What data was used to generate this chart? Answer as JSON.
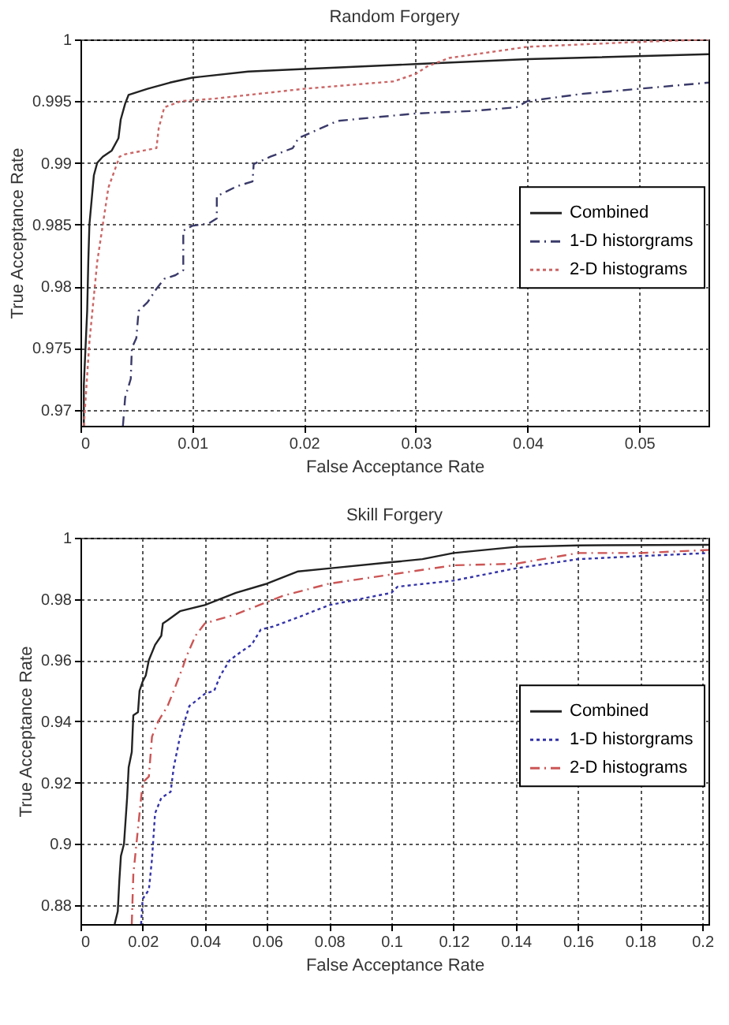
{
  "chart_data": [
    {
      "type": "line",
      "title": "Random Forgery",
      "xlabel": "False Acceptance Rate",
      "ylabel": "True Acceptance Rate",
      "xlim": [
        0,
        0.0562
      ],
      "ylim": [
        0.9687,
        1
      ],
      "xticks": [
        0,
        0.01,
        0.02,
        0.03,
        0.04,
        0.05
      ],
      "yticks": [
        0.97,
        0.975,
        0.98,
        0.985,
        0.99,
        0.995,
        1
      ],
      "grid": true,
      "legend": "right",
      "series": [
        {
          "name": "Combined",
          "color": "#222222",
          "line_style": "solid",
          "x": [
            0.0003,
            0.0003,
            0.0005,
            0.0006,
            0.0007,
            0.0008,
            0.001,
            0.0012,
            0.0015,
            0.002,
            0.0028,
            0.0034,
            0.0036,
            0.004,
            0.0043,
            0.006,
            0.008,
            0.01,
            0.015,
            0.02,
            0.03,
            0.04,
            0.0562
          ],
          "values": [
            0.9687,
            0.972,
            0.976,
            0.978,
            0.982,
            0.985,
            0.987,
            0.989,
            0.99,
            0.9905,
            0.991,
            0.992,
            0.9935,
            0.9948,
            0.9955,
            0.996,
            0.9965,
            0.9969,
            0.9974,
            0.9976,
            0.998,
            0.9984,
            0.9988
          ]
        },
        {
          "name": "1-D historgrams",
          "color": "#3a3a6a",
          "line_style": "dashed",
          "x": [
            0.0038,
            0.004,
            0.0045,
            0.0046,
            0.005,
            0.0052,
            0.006,
            0.0068,
            0.0075,
            0.0085,
            0.0092,
            0.0092,
            0.01,
            0.0115,
            0.0122,
            0.0122,
            0.014,
            0.0154,
            0.0155,
            0.017,
            0.019,
            0.0195,
            0.021,
            0.023,
            0.03,
            0.035,
            0.039,
            0.04,
            0.045,
            0.05,
            0.0562
          ],
          "values": [
            0.9687,
            0.971,
            0.9725,
            0.975,
            0.9758,
            0.978,
            0.9787,
            0.9798,
            0.9806,
            0.9809,
            0.9813,
            0.9845,
            0.9849,
            0.9851,
            0.9855,
            0.9873,
            0.9881,
            0.9885,
            0.9899,
            0.9905,
            0.9912,
            0.992,
            0.9926,
            0.9934,
            0.994,
            0.9942,
            0.9945,
            0.995,
            0.9956,
            0.996,
            0.9965
          ]
        },
        {
          "name": "2-D histograms",
          "color": "#cc6666",
          "line_style": "dotted",
          "x": [
            0.0003,
            0.0008,
            0.0015,
            0.002,
            0.0025,
            0.0035,
            0.004,
            0.0068,
            0.007,
            0.0075,
            0.009,
            0.012,
            0.02,
            0.028,
            0.03,
            0.031,
            0.033,
            0.04,
            0.05,
            0.0562
          ],
          "values": [
            0.9687,
            0.9755,
            0.982,
            0.985,
            0.988,
            0.9905,
            0.9907,
            0.9912,
            0.9928,
            0.9945,
            0.995,
            0.9952,
            0.996,
            0.9966,
            0.9972,
            0.9978,
            0.9985,
            0.9994,
            0.9998,
            1
          ]
        }
      ]
    },
    {
      "type": "line",
      "title": "Skill Forgery",
      "xlabel": "False Acceptance Rate",
      "ylabel": "True Acceptance Rate",
      "xlim": [
        0,
        0.202
      ],
      "ylim": [
        0.8738,
        1
      ],
      "xticks": [
        0,
        0.02,
        0.04,
        0.06,
        0.08,
        0.1,
        0.12,
        0.14,
        0.16,
        0.18,
        0.2
      ],
      "yticks": [
        0.88,
        0.9,
        0.92,
        0.94,
        0.96,
        0.98,
        1
      ],
      "grid": true,
      "legend": "right",
      "series": [
        {
          "name": "Combined",
          "color": "#222222",
          "line_style": "solid",
          "x": [
            0.011,
            0.012,
            0.0125,
            0.013,
            0.014,
            0.015,
            0.0155,
            0.0165,
            0.017,
            0.0185,
            0.019,
            0.02,
            0.021,
            0.022,
            0.024,
            0.026,
            0.0265,
            0.028,
            0.032,
            0.04,
            0.045,
            0.05,
            0.06,
            0.065,
            0.07,
            0.08,
            0.1,
            0.11,
            0.12,
            0.14,
            0.16,
            0.202
          ],
          "values": [
            0.8738,
            0.878,
            0.888,
            0.896,
            0.9,
            0.915,
            0.925,
            0.93,
            0.942,
            0.943,
            0.95,
            0.953,
            0.955,
            0.96,
            0.965,
            0.968,
            0.972,
            0.973,
            0.976,
            0.978,
            0.98,
            0.982,
            0.985,
            0.987,
            0.989,
            0.99,
            0.992,
            0.993,
            0.995,
            0.997,
            0.9975,
            0.9977
          ]
        },
        {
          "name": "1-D historgrams",
          "color": "#3333aa",
          "line_style": "dotted",
          "x": [
            0.0195,
            0.02,
            0.022,
            0.023,
            0.024,
            0.026,
            0.029,
            0.03,
            0.032,
            0.035,
            0.04,
            0.043,
            0.045,
            0.048,
            0.052,
            0.055,
            0.058,
            0.062,
            0.07,
            0.08,
            0.09,
            0.1,
            0.102,
            0.12,
            0.13,
            0.14,
            0.16,
            0.18,
            0.202
          ],
          "values": [
            0.8738,
            0.882,
            0.885,
            0.895,
            0.91,
            0.915,
            0.917,
            0.925,
            0.935,
            0.945,
            0.949,
            0.95,
            0.955,
            0.96,
            0.963,
            0.965,
            0.97,
            0.971,
            0.974,
            0.978,
            0.98,
            0.982,
            0.984,
            0.986,
            0.988,
            0.99,
            0.993,
            0.994,
            0.995
          ]
        },
        {
          "name": "2-D histograms",
          "color": "#cc5555",
          "line_style": "dashed",
          "x": [
            0.0165,
            0.017,
            0.018,
            0.019,
            0.02,
            0.022,
            0.023,
            0.025,
            0.028,
            0.03,
            0.033,
            0.034,
            0.037,
            0.04,
            0.05,
            0.06,
            0.065,
            0.08,
            0.1,
            0.12,
            0.14,
            0.16,
            0.18,
            0.202
          ],
          "values": [
            0.8738,
            0.89,
            0.9,
            0.91,
            0.92,
            0.922,
            0.935,
            0.94,
            0.945,
            0.95,
            0.958,
            0.961,
            0.968,
            0.972,
            0.975,
            0.979,
            0.981,
            0.985,
            0.988,
            0.991,
            0.9915,
            0.995,
            0.995,
            0.996
          ]
        }
      ]
    }
  ]
}
